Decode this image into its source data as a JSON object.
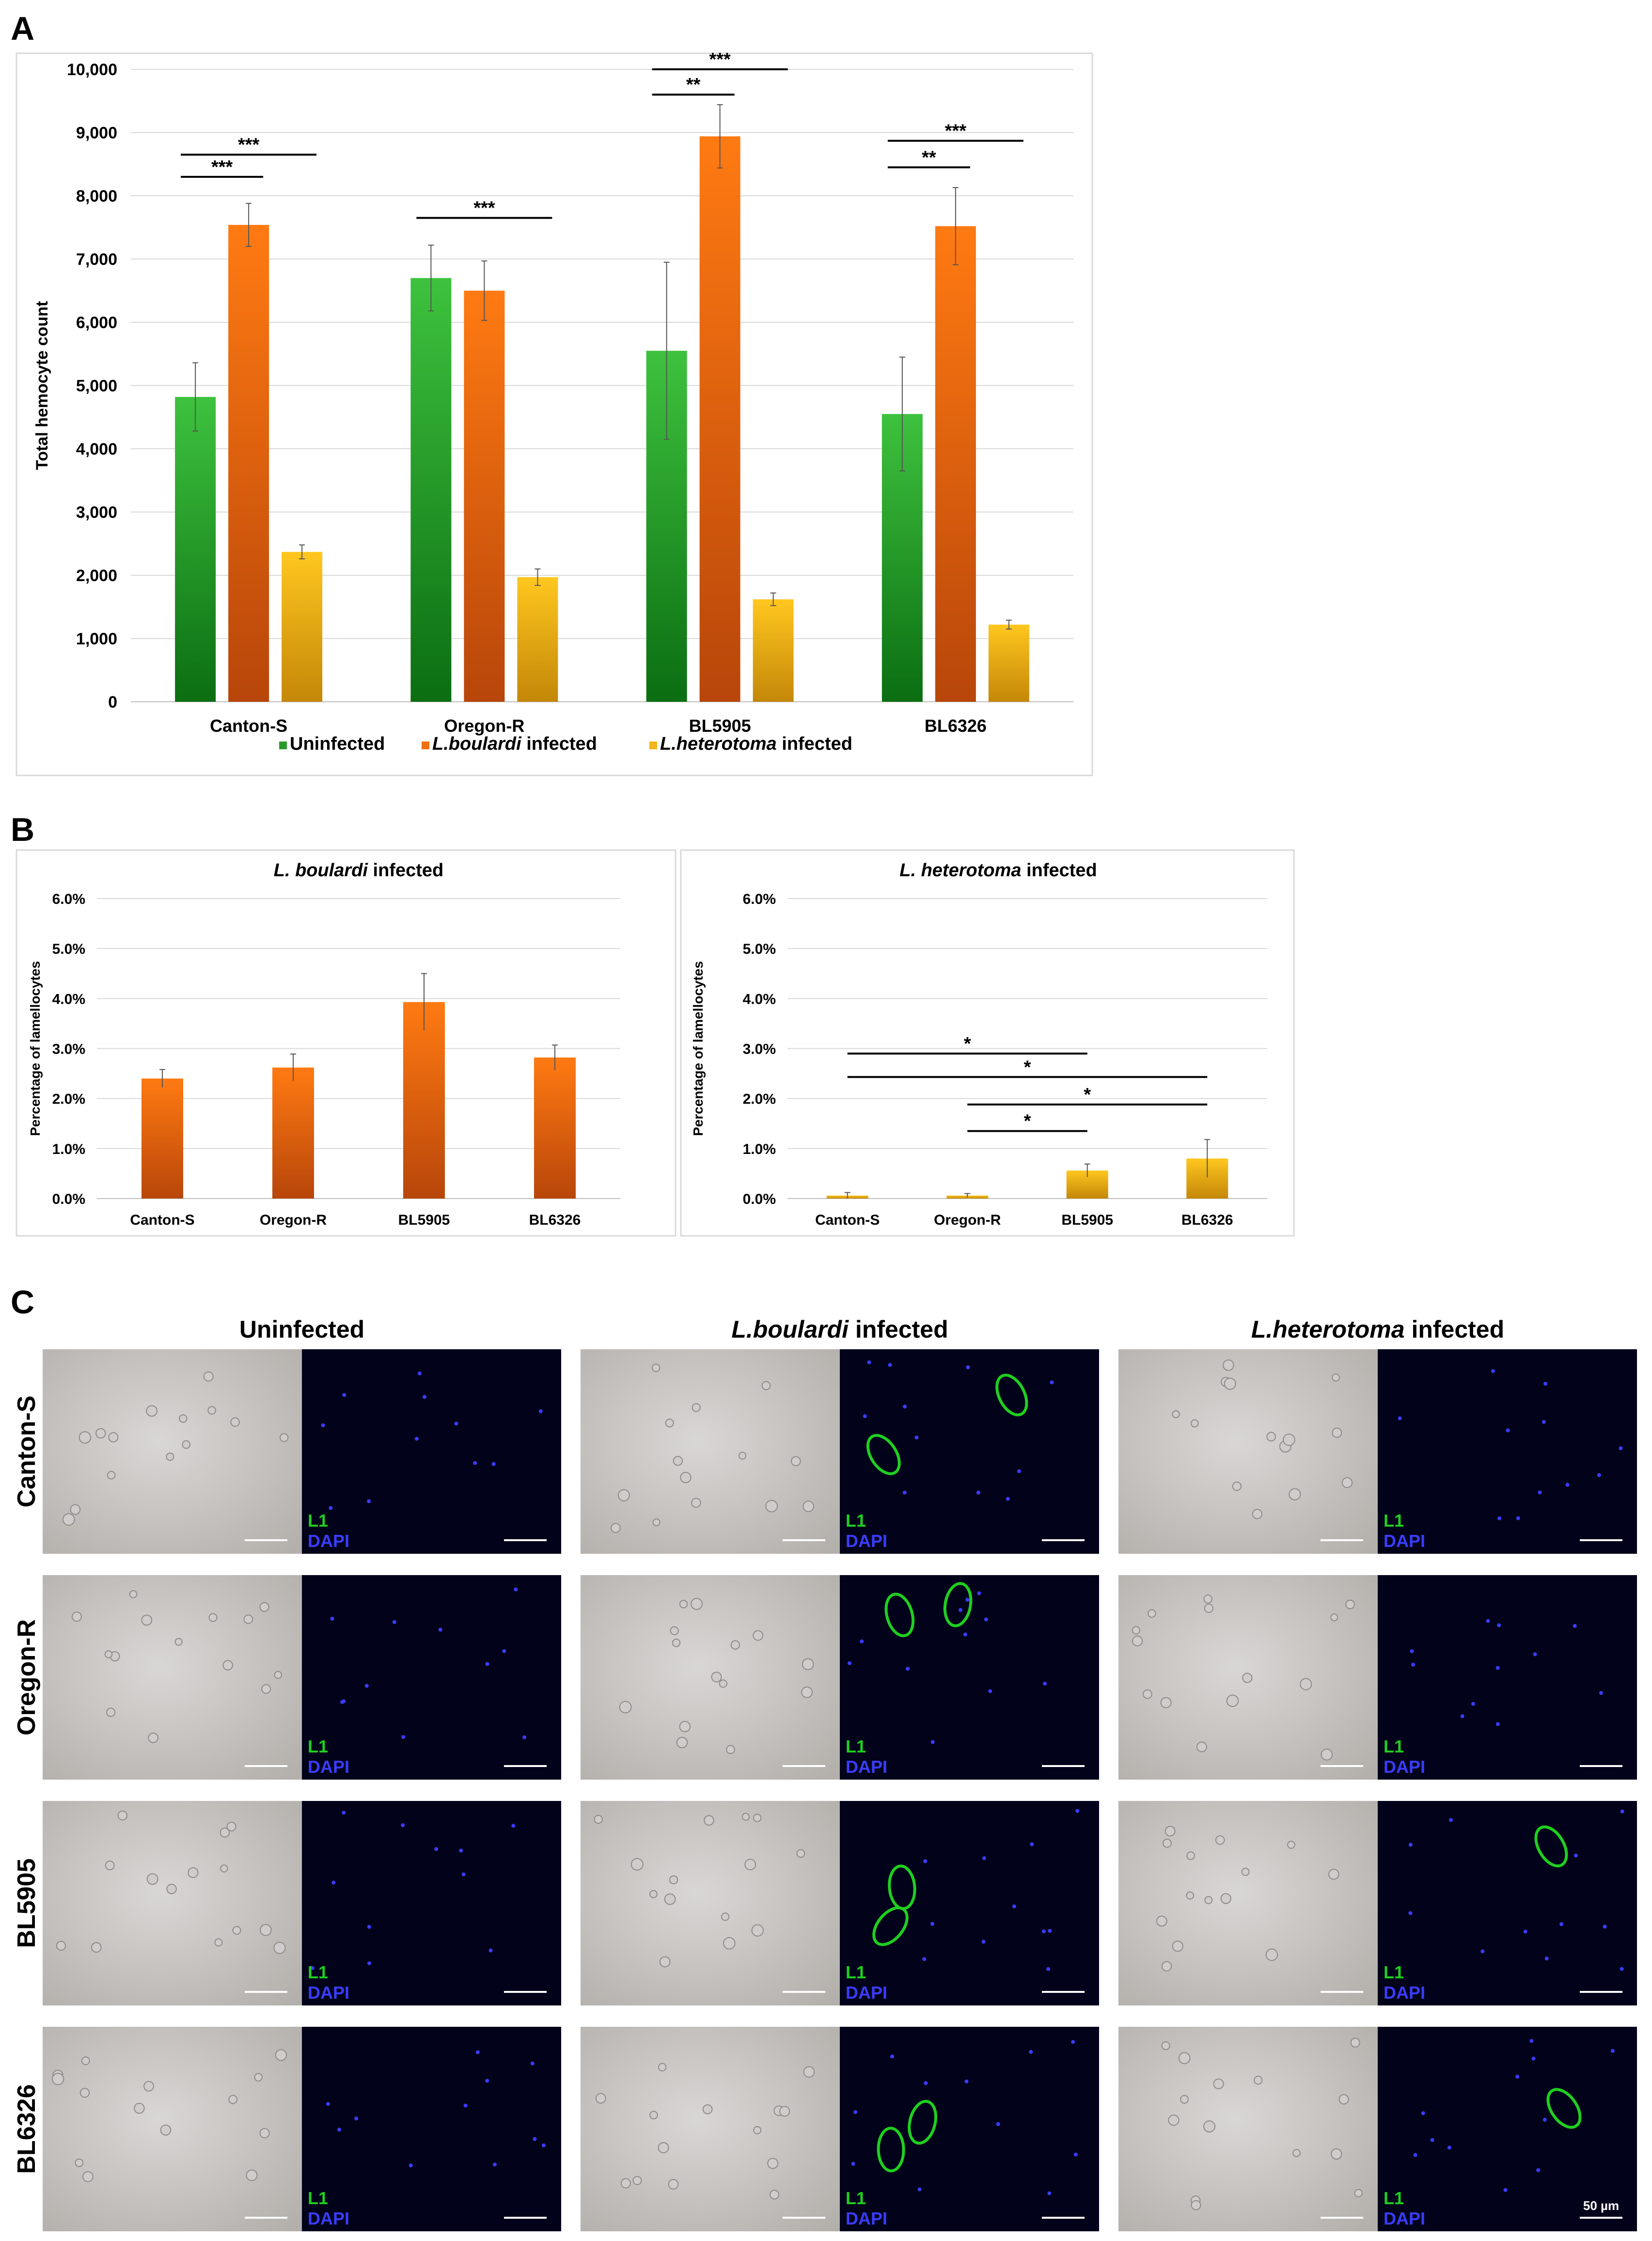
{
  "panel_a": {
    "letter": "A",
    "chart_data": {
      "type": "bar",
      "categories": [
        "Canton-S",
        "Oregon-R",
        "BL5905",
        "BL6326"
      ],
      "ylabel": "Total hemocyte count",
      "ylim": [
        0,
        10000
      ],
      "yticks": [
        "0",
        "1,000",
        "2,000",
        "3,000",
        "4,000",
        "5,000",
        "6,000",
        "7,000",
        "8,000",
        "9,000",
        "10,000"
      ],
      "grid": true,
      "legend_position": "bottom",
      "series": [
        {
          "name": "Uninfected",
          "legend_italic": "",
          "legend_rest": "Uninfected",
          "color": "#2a9a2a",
          "values": [
            4820,
            6700,
            5550,
            4550
          ],
          "errors": [
            540,
            520,
            1400,
            900
          ]
        },
        {
          "name": "L.boulardi infected",
          "legend_italic": "L.boulardi",
          "legend_rest": " infected",
          "color": "#f07010",
          "values": [
            7540,
            6500,
            8940,
            7520
          ],
          "errors": [
            340,
            470,
            500,
            610
          ]
        },
        {
          "name": "L.heterotoma infected",
          "legend_italic": "L.heterotoma",
          "legend_rest": " infected",
          "color": "#f2b61a",
          "values": [
            2370,
            1970,
            1620,
            1220
          ],
          "errors": [
            110,
            130,
            100,
            70
          ]
        }
      ],
      "annotations": [
        {
          "label": "***",
          "category": 0,
          "from": 0,
          "to": 1,
          "y": 8300
        },
        {
          "label": "***",
          "category": 0,
          "from": 0,
          "to": 2,
          "y": 8650
        },
        {
          "label": "***",
          "category": 1,
          "from": 0,
          "to": 2,
          "y": 7650
        },
        {
          "label": "**",
          "category": 2,
          "from": 0,
          "to": 1,
          "y": 9600
        },
        {
          "label": "***",
          "category": 2,
          "from": 0,
          "to": 2,
          "y": 10000
        },
        {
          "label": "**",
          "category": 3,
          "from": 0,
          "to": 1,
          "y": 8450
        },
        {
          "label": "***",
          "category": 3,
          "from": 0,
          "to": 2,
          "y": 8870
        }
      ]
    }
  },
  "panel_b": {
    "letter": "B",
    "charts": [
      {
        "type": "bar",
        "title_italic": "L. boulardi",
        "title_rest": " infected",
        "ylabel": "Percentage of lamellocytes",
        "categories": [
          "Canton-S",
          "Oregon-R",
          "BL5905",
          "BL6326"
        ],
        "ylim": [
          0,
          6
        ],
        "yticks": [
          "0.0%",
          "1.0%",
          "2.0%",
          "3.0%",
          "4.0%",
          "5.0%",
          "6.0%"
        ],
        "color": "#f07010",
        "values": [
          2.4,
          2.62,
          3.93,
          2.82
        ],
        "errors": [
          0.18,
          0.27,
          0.57,
          0.25
        ],
        "annotations": []
      },
      {
        "type": "bar",
        "title_italic": "L. heterotoma",
        "title_rest": " infected",
        "ylabel": "Percentage of lamellocytes",
        "categories": [
          "Canton-S",
          "Oregon-R",
          "BL5905",
          "BL6326"
        ],
        "ylim": [
          0,
          6
        ],
        "yticks": [
          "0.0%",
          "1.0%",
          "2.0%",
          "3.0%",
          "4.0%",
          "5.0%",
          "6.0%"
        ],
        "color": "#f2b61a",
        "values": [
          0.06,
          0.06,
          0.56,
          0.8
        ],
        "errors": [
          0.06,
          0.04,
          0.13,
          0.38
        ],
        "annotations": [
          {
            "label": "*",
            "from": 0,
            "to": 2,
            "y": 2.9
          },
          {
            "label": "*",
            "from": 0,
            "to": 3,
            "y": 2.43
          },
          {
            "label": "*",
            "from": 1,
            "to": 3,
            "y": 1.88
          },
          {
            "label": "*",
            "from": 1,
            "to": 2,
            "y": 1.35
          }
        ]
      }
    ]
  },
  "panel_c": {
    "letter": "C",
    "columns": [
      {
        "italic": "",
        "rest": "Uninfected",
        "green_cells": [
          0,
          0,
          0,
          0
        ]
      },
      {
        "italic": "L.boulardi",
        "rest": " infected",
        "green_cells": [
          2,
          2,
          2,
          2
        ]
      },
      {
        "italic": "L.heterotoma",
        "rest": " infected",
        "green_cells": [
          0,
          0,
          1,
          1
        ]
      }
    ],
    "rows": [
      "Canton-S",
      "Oregon-R",
      "BL5905",
      "BL6326"
    ],
    "stain_l1": "L1",
    "stain_dapi": "DAPI",
    "scale_label": "50 µm",
    "l1_color": "#1fd01f",
    "dapi_color": "#3a3cff"
  }
}
